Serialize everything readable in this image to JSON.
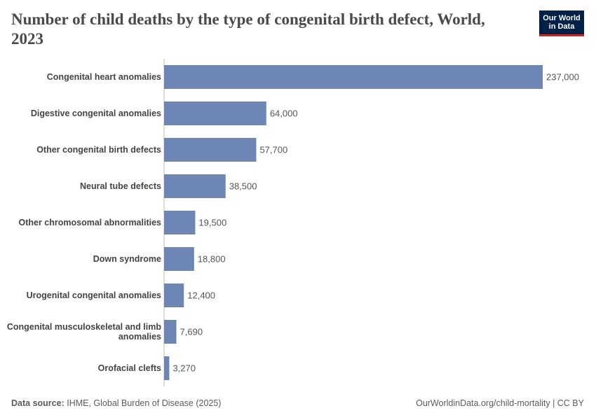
{
  "logo": {
    "line1": "Our World",
    "line2": "in Data"
  },
  "chart_data": {
    "type": "bar",
    "orientation": "horizontal",
    "title": "Number of child deaths by the type of congenital birth defect, World, 2023",
    "categories": [
      "Congenital heart anomalies",
      "Digestive congenital anomalies",
      "Other congenital birth defects",
      "Neural tube defects",
      "Other chromosomal abnormalities",
      "Down syndrome",
      "Urogenital congenital anomalies",
      "Congenital musculoskeletal and limb anomalies",
      "Orofacial clefts"
    ],
    "values": [
      237000,
      64000,
      57700,
      38500,
      19500,
      18800,
      12400,
      7690,
      3270
    ],
    "value_labels": [
      "237,000",
      "64,000",
      "57,700",
      "38,500",
      "19,500",
      "18,800",
      "12,400",
      "7,690",
      "3,270"
    ],
    "color": "#6d86b3",
    "source_label": "Data source:",
    "source": "IHME, Global Burden of Disease (2025)",
    "credit": "OurWorldinData.org/child-mortality | CC BY"
  }
}
